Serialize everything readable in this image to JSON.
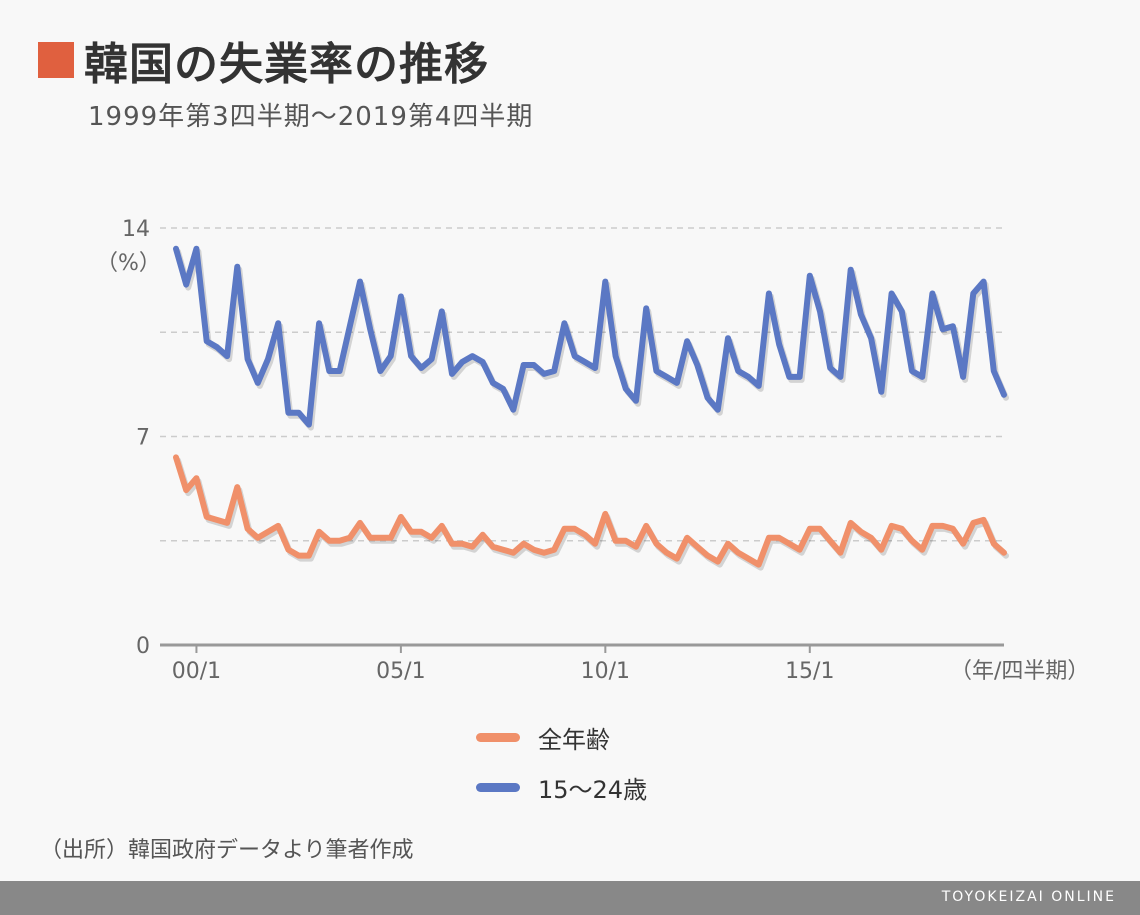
{
  "header": {
    "title": "韓国の失業率の推移",
    "subtitle": "1999年第3四半期〜2019第4四半期"
  },
  "source": "（出所）韓国政府データより筆者作成",
  "footer": {
    "brand": "TOYOKEIZAI ONLINE"
  },
  "colors": {
    "accent": "#e0603f",
    "series_all": "#f0906a",
    "series_youth": "#5b78c4",
    "footer_bg": "#888888"
  },
  "chart_data": {
    "type": "line",
    "title": "韓国の失業率の推移",
    "ylabel": "（%）",
    "xlabel": "（年/四半期）",
    "ylim": [
      0,
      14
    ],
    "yticks": [
      "0",
      "7",
      "14"
    ],
    "xticks": [
      {
        "label": "00/1",
        "index": 2
      },
      {
        "label": "05/1",
        "index": 22
      },
      {
        "label": "10/1",
        "index": 42
      },
      {
        "label": "15/1",
        "index": 62
      }
    ],
    "grid": true,
    "legend_position": "bottom",
    "x_count": 82,
    "series": [
      {
        "name": "全年齢",
        "color": "#f0906a",
        "values": [
          6.3,
          5.2,
          5.6,
          4.3,
          4.2,
          4.1,
          5.3,
          3.9,
          3.6,
          3.8,
          4.0,
          3.2,
          3.0,
          3.0,
          3.8,
          3.5,
          3.5,
          3.6,
          4.1,
          3.6,
          3.6,
          3.6,
          4.3,
          3.8,
          3.8,
          3.6,
          4.0,
          3.4,
          3.4,
          3.3,
          3.7,
          3.3,
          3.2,
          3.1,
          3.4,
          3.2,
          3.1,
          3.2,
          3.9,
          3.9,
          3.7,
          3.4,
          4.4,
          3.5,
          3.5,
          3.3,
          4.0,
          3.4,
          3.1,
          2.9,
          3.6,
          3.3,
          3.0,
          2.8,
          3.4,
          3.1,
          2.9,
          2.7,
          3.6,
          3.6,
          3.4,
          3.2,
          3.9,
          3.9,
          3.5,
          3.1,
          4.1,
          3.8,
          3.6,
          3.2,
          4.0,
          3.9,
          3.5,
          3.2,
          4.0,
          4.0,
          3.9,
          3.4,
          4.1,
          4.2,
          3.4,
          3.1
        ]
      },
      {
        "name": "15〜24歳",
        "color": "#5b78c4",
        "values": [
          13.3,
          12.1,
          13.3,
          10.2,
          10.0,
          9.7,
          12.7,
          9.6,
          8.8,
          9.6,
          10.8,
          7.8,
          7.8,
          7.4,
          10.8,
          9.2,
          9.2,
          10.7,
          12.2,
          10.6,
          9.2,
          9.7,
          11.7,
          9.7,
          9.3,
          9.6,
          11.2,
          9.1,
          9.5,
          9.7,
          9.5,
          8.8,
          8.6,
          7.9,
          9.4,
          9.4,
          9.1,
          9.2,
          10.8,
          9.7,
          9.5,
          9.3,
          12.2,
          9.7,
          8.6,
          8.2,
          11.3,
          9.2,
          9.0,
          8.8,
          10.2,
          9.4,
          8.3,
          7.9,
          10.3,
          9.2,
          9.0,
          8.7,
          11.8,
          10.1,
          9.0,
          9.0,
          12.4,
          11.2,
          9.3,
          9.0,
          12.6,
          11.1,
          10.3,
          8.5,
          11.8,
          11.2,
          9.2,
          9.0,
          11.8,
          10.6,
          10.7,
          9.0,
          11.8,
          12.2,
          9.2,
          8.4
        ]
      }
    ]
  }
}
